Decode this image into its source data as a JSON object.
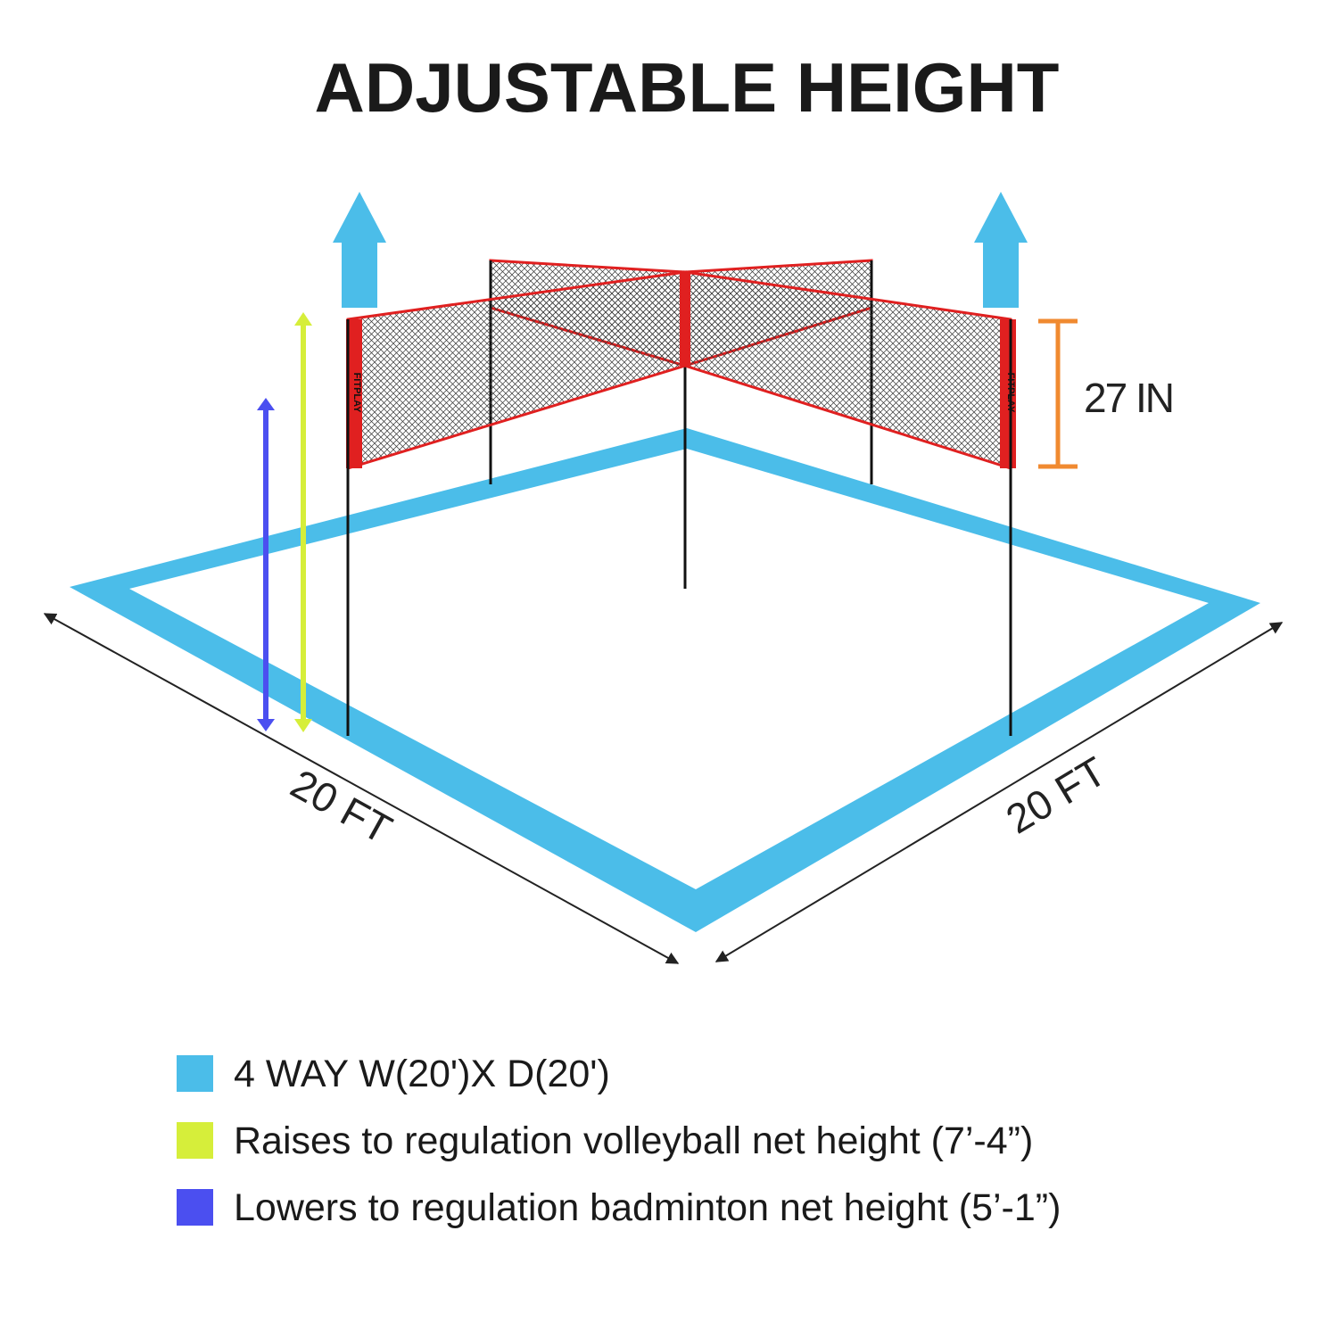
{
  "title": "ADJUSTABLE HEIGHT",
  "net_brand": "FITPLAY",
  "height_label": "27 IN",
  "dimensions": {
    "left": "20 FT",
    "right": "20 FT"
  },
  "legend": [
    "4 WAY W(20')X D(20')",
    "Raises to regulation volleyball net height (7’-4”)",
    "Lowers to regulation badminton net height (5’-1”)"
  ]
}
